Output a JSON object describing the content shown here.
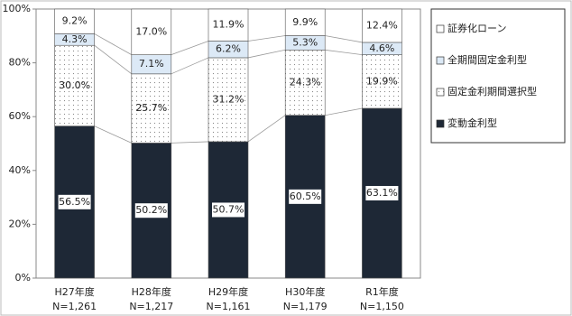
{
  "chart_data": {
    "type": "stacked_bar",
    "categories": [
      "H27年度",
      "H28年度",
      "H29年度",
      "H30年度",
      "R1年度"
    ],
    "sample_sizes": [
      "N=1,261",
      "N=1,217",
      "N=1,161",
      "N=1,179",
      "N=1,150"
    ],
    "series": [
      {
        "name": "変動金利型",
        "color": "#1e2836",
        "values": [
          56.5,
          50.2,
          50.7,
          60.5,
          63.1
        ],
        "value_labels": [
          "56.5%",
          "50.2%",
          "50.7%",
          "60.5%",
          "63.1%"
        ]
      },
      {
        "name": "固定金利期間選択型",
        "color": "#ffffff",
        "hatch": "dots",
        "values": [
          30.0,
          25.7,
          31.2,
          24.3,
          19.9
        ],
        "value_labels": [
          "30.0%",
          "25.7%",
          "31.2%",
          "24.3%",
          "19.9%"
        ]
      },
      {
        "name": "全期間固定金利型",
        "color": "#dce9f6",
        "values": [
          4.3,
          7.1,
          6.2,
          5.3,
          4.6
        ],
        "value_labels": [
          "4.3%",
          "7.1%",
          "6.2%",
          "5.3%",
          "4.6%"
        ]
      },
      {
        "name": "証券化ローン",
        "color": "#ffffff",
        "values": [
          9.2,
          17.0,
          11.9,
          9.9,
          12.4
        ],
        "value_labels": [
          "9.2%",
          "17.0%",
          "11.9%",
          "9.9%",
          "12.4%"
        ]
      }
    ],
    "ylim": [
      0,
      100
    ],
    "yticks": [
      {
        "value": 0,
        "label": "0%"
      },
      {
        "value": 20,
        "label": "20%"
      },
      {
        "value": 40,
        "label": "40%"
      },
      {
        "value": 60,
        "label": "60%"
      },
      {
        "value": 80,
        "label": "80%"
      },
      {
        "value": 100,
        "label": "100%"
      }
    ],
    "legend": "right"
  }
}
